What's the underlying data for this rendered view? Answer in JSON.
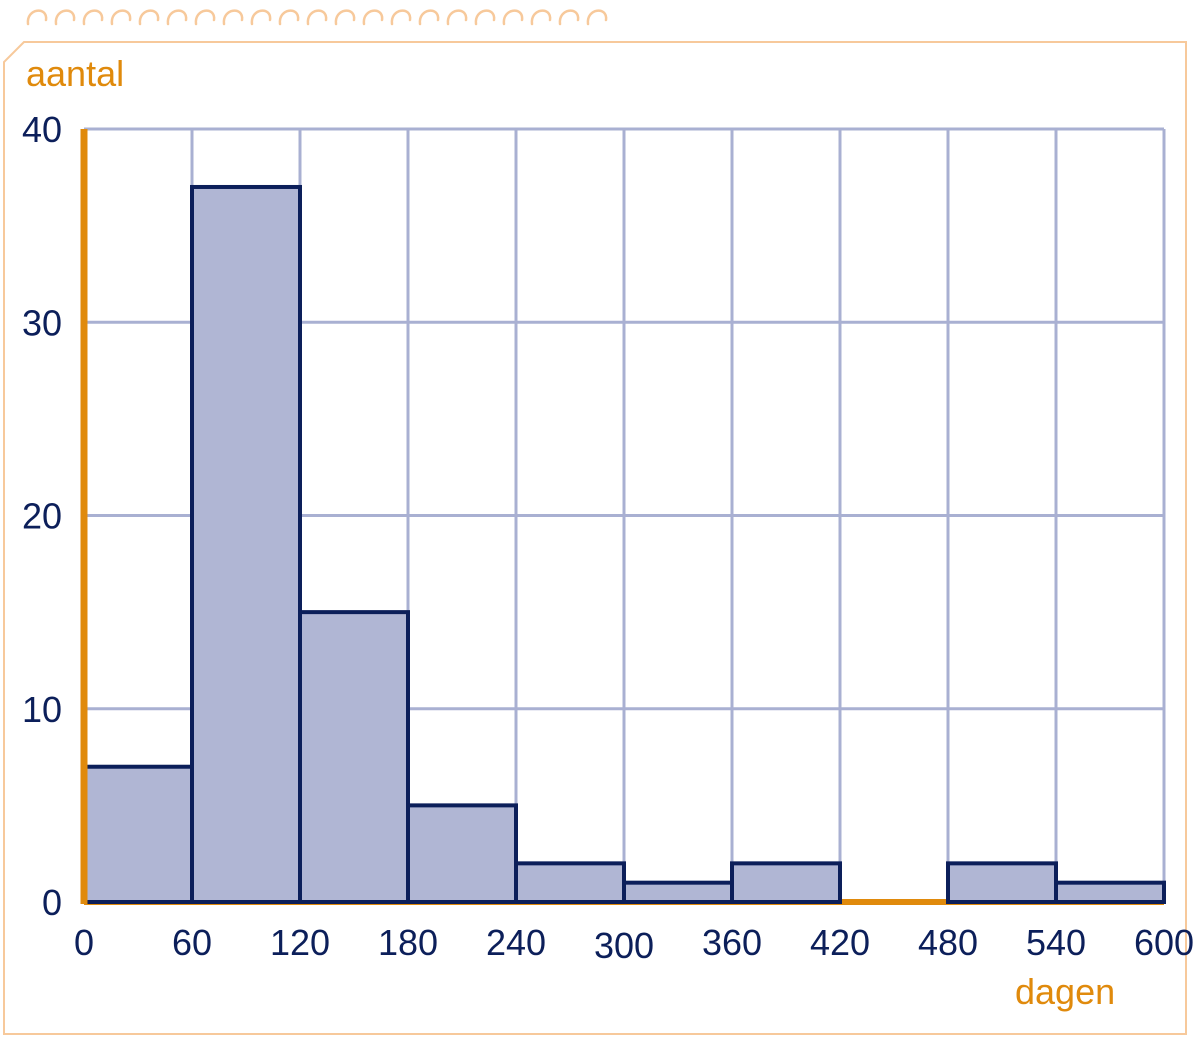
{
  "colors": {
    "axis": "#e08a0c",
    "grid": "#a9b0d2",
    "bar_fill": "#b0b6d4",
    "bar_stroke": "#0c1f5a",
    "tick_text": "#0c1f5a",
    "label_text": "#e08a0c",
    "frame": "#f7c99b"
  },
  "chart_data": {
    "type": "bar",
    "title": "",
    "xlabel": "dagen",
    "ylabel": "aantal",
    "bins": [
      {
        "from": 0,
        "to": 60,
        "value": 7
      },
      {
        "from": 60,
        "to": 120,
        "value": 37
      },
      {
        "from": 120,
        "to": 180,
        "value": 15
      },
      {
        "from": 180,
        "to": 240,
        "value": 5
      },
      {
        "from": 240,
        "to": 300,
        "value": 2
      },
      {
        "from": 300,
        "to": 360,
        "value": 1
      },
      {
        "from": 360,
        "to": 420,
        "value": 2
      },
      {
        "from": 420,
        "to": 480,
        "value": 0
      },
      {
        "from": 480,
        "to": 540,
        "value": 2
      },
      {
        "from": 540,
        "to": 600,
        "value": 1
      }
    ],
    "x_ticks": [
      "0",
      "60",
      "120",
      "180",
      "240",
      "300",
      "360",
      "420",
      "480",
      "540",
      "600"
    ],
    "y_ticks": [
      "0",
      "10",
      "20",
      "30",
      "40"
    ],
    "xlim": [
      0,
      600
    ],
    "ylim": [
      0,
      40
    ],
    "grid": true
  }
}
